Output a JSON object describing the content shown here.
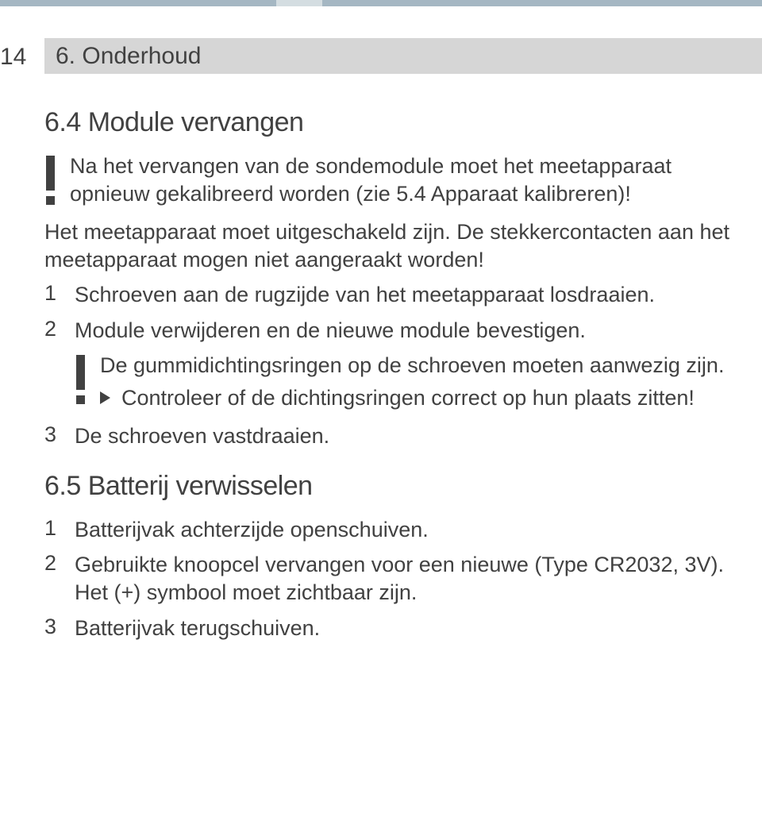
{
  "colors": {
    "band": "#a5b7c3",
    "band_light": "#d4dde1",
    "header_bg": "#d6d6d6",
    "text": "#414141",
    "bg": "#ffffff"
  },
  "typography": {
    "heading_fontsize_pt": 26,
    "body_fontsize_pt": 20,
    "font_family": "Helvetica Neue"
  },
  "page_number": "14",
  "header": "6. Onderhoud",
  "section_64": {
    "title": "6.4 Module vervangen",
    "warning1": "Na het vervangen van de sondemodule moet het meetapparaat opnieuw gekalibreerd worden (zie 5.4 Apparaat kalibreren)!",
    "note": "Het meetapparaat moet uitgeschakeld zijn. De stekkercontacten aan het meetapparaat mogen niet aangeraakt worden!",
    "step1": "Schroeven aan de rugzijde van het meetapparaat losdraaien.",
    "step2": "Module verwijderen en de nieuwe module bevestigen.",
    "warning2": "De gummidichtingsringen op de schroeven moeten aanwezig zijn.",
    "check": "Controleer of de dichtingsringen correct op hun plaats zitten!",
    "step3": "De schroeven vastdraaien."
  },
  "section_65": {
    "title": "6.5 Batterij verwisselen",
    "step1": "Batterijvak achterzijde openschuiven.",
    "step2": "Gebruikte knoopcel vervangen voor een nieuwe (Type CR2032, 3V). Het (+) symbool moet zichtbaar zijn.",
    "step3": "Batterijvak terugschuiven."
  }
}
